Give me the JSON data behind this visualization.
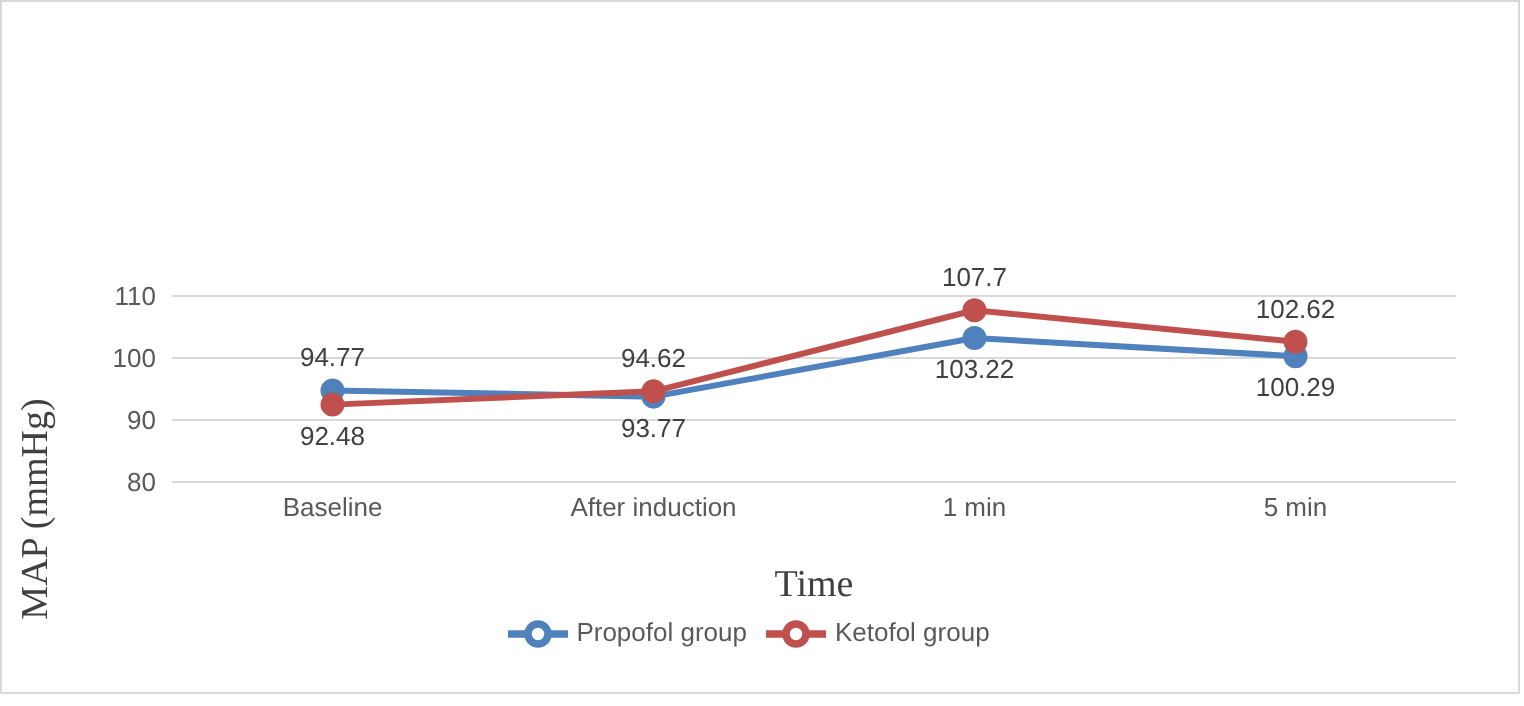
{
  "chart_data": {
    "type": "line",
    "xlabel": "Time",
    "ylabel": "MAP (mmHg)",
    "categories": [
      "Baseline",
      "After induction",
      "1 min",
      "5 min"
    ],
    "series": [
      {
        "name": "Propofol group",
        "color": "#4f81bd",
        "values": [
          94.77,
          93.77,
          103.22,
          100.29
        ]
      },
      {
        "name": "Ketofol group",
        "color": "#c0504d",
        "values": [
          92.48,
          94.62,
          107.7,
          102.62
        ]
      }
    ],
    "ylim": [
      80,
      110
    ],
    "yticks": [
      80,
      90,
      100,
      110
    ],
    "grid": "y",
    "legend": "bottom",
    "marker": "circle",
    "data_labels": true
  }
}
